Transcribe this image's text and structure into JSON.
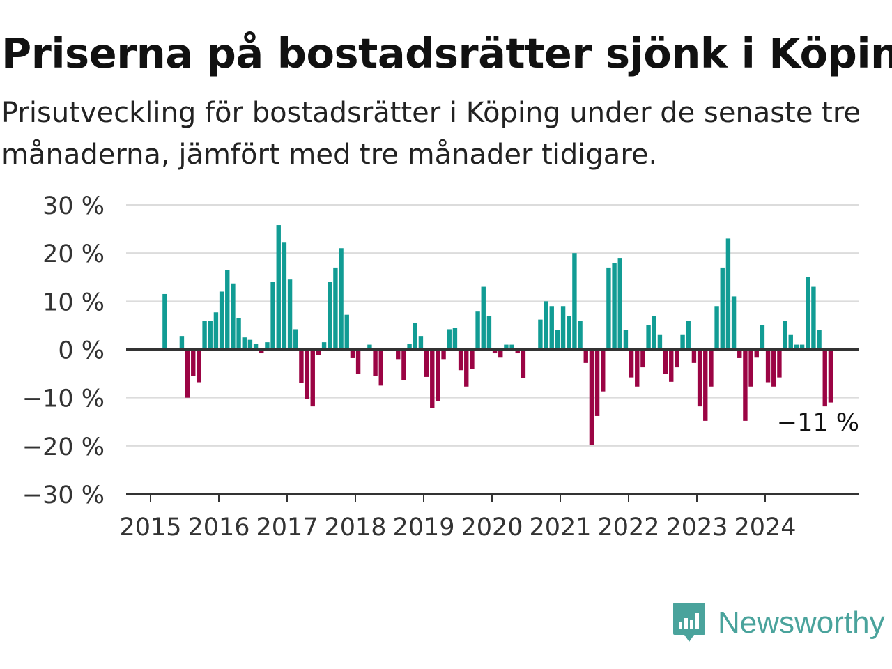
{
  "title": "Priserna på bostadsrätter sjönk i Köping",
  "subtitle": "Prisutveckling för bostadsrätter i Köping under de senaste tre månaderna, jämfört med tre månader tidigare.",
  "brand": {
    "name": "Newsworthy",
    "icon": "newsworthy-logo-icon",
    "color": "#4aa39c"
  },
  "chart_data": {
    "type": "bar",
    "x_start": "2015-01",
    "x_step": "month",
    "x_ticks": [
      "2015",
      "2016",
      "2017",
      "2018",
      "2019",
      "2020",
      "2021",
      "2022",
      "2023",
      "2024"
    ],
    "y_ticks": [
      "30 %",
      "20 %",
      "10 %",
      "0 %",
      "−10 %",
      "−20 %",
      "−30 %"
    ],
    "ylim": [
      -30,
      30
    ],
    "positive_color": "#119c94",
    "negative_color": "#9b0444",
    "grid": true,
    "annotation": {
      "text": "−11 %"
    },
    "values": [
      null,
      null,
      11.5,
      null,
      null,
      2.8,
      -10,
      -5.5,
      -6.8,
      6,
      6,
      7.7,
      12,
      16.5,
      13.7,
      6.5,
      2.5,
      2,
      1.2,
      -0.8,
      1.5,
      14,
      25.8,
      22.3,
      14.5,
      4.2,
      -7,
      -10.2,
      -11.8,
      -1.2,
      1.5,
      14,
      17,
      21,
      7.2,
      -1.8,
      -5,
      0,
      1,
      -5.5,
      -7.5,
      0,
      0,
      -2,
      -6.3,
      1.2,
      5.5,
      2.8,
      -5.7,
      -12.2,
      -10.7,
      -2,
      4.2,
      4.5,
      -4.3,
      -7.7,
      -4,
      8,
      13,
      7,
      -0.8,
      -1.7,
      1,
      1,
      -0.8,
      -6,
      0,
      0,
      6.2,
      10,
      9,
      4,
      9,
      7,
      20,
      6,
      -2.8,
      -19.8,
      -13.8,
      -8.7,
      17,
      18,
      19,
      4,
      -5.8,
      -7.7,
      -3.7,
      5,
      7,
      3,
      -5,
      -6.7,
      -3.7,
      3,
      6,
      -2.8,
      -11.8,
      -14.8,
      -7.7,
      9,
      17,
      23,
      11,
      -1.8,
      -14.8,
      -7.7,
      -1.7,
      5,
      -6.8,
      -7.7,
      -5.8,
      6,
      3,
      1,
      1,
      15,
      13,
      4,
      -11.8,
      -11
    ]
  }
}
